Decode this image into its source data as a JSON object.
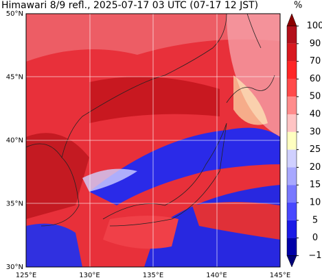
{
  "header": {
    "title": "Himawari 8/9 refl., 2025-07-17 03 UTC (07-17 12 JST)"
  },
  "map": {
    "lat_labels": [
      "50°N",
      "45°N",
      "40°N",
      "35°N",
      "30°N"
    ],
    "lon_labels": [
      "125°E",
      "130°E",
      "135°E",
      "140°E",
      "145°E"
    ]
  },
  "colorbar": {
    "unit": "%",
    "ticks": [
      "100",
      "90",
      "70",
      "60",
      "50",
      "40",
      "30",
      "25",
      "20",
      "15",
      "10",
      "5",
      "0",
      "−1"
    ],
    "colors": [
      "#8b0000",
      "#b3101b",
      "#d8181f",
      "#ff2626",
      "#ff4a4a",
      "#ff8c8c",
      "#ffc4c4",
      "#ffffc0",
      "#d0d0ff",
      "#a8a8ff",
      "#7878ff",
      "#4848ff",
      "#1a1ae6",
      "#0000a8",
      "#000078"
    ]
  }
}
